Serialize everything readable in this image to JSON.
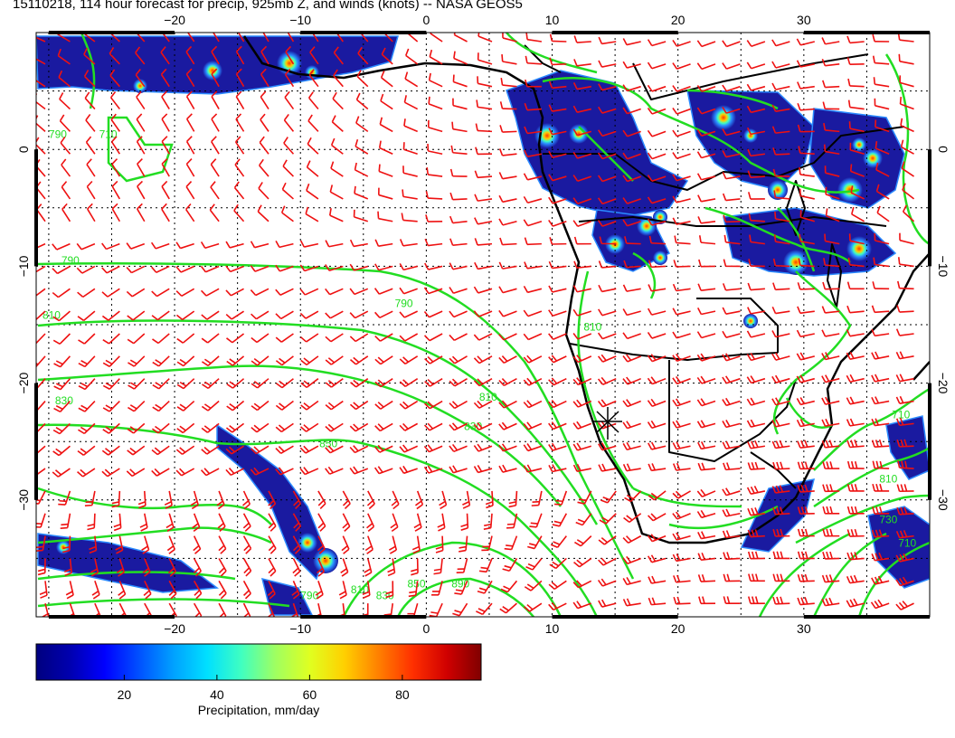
{
  "title": "15110218, 114 hour forecast for precip, 925mb Z, and winds (knots) -- NASA GEOS5",
  "map": {
    "lon_range": [
      -31,
      40
    ],
    "lat_range": [
      -40,
      10
    ],
    "lon_ticks": [
      {
        "value": -20,
        "label": "−20"
      },
      {
        "value": -10,
        "label": "−10"
      },
      {
        "value": 0,
        "label": "0"
      },
      {
        "value": 10,
        "label": "10"
      },
      {
        "value": 20,
        "label": "20"
      },
      {
        "value": 30,
        "label": "30"
      }
    ],
    "lat_ticks": [
      {
        "value": 0,
        "label": "0"
      },
      {
        "value": -10,
        "label": "−10"
      },
      {
        "value": -20,
        "label": "−20"
      },
      {
        "value": -30,
        "label": "−30"
      }
    ],
    "grid": true,
    "colors": {
      "precip_low": "#1a1aa0",
      "precip_mid": "#2a8aff",
      "precip_high": "#ff3a00",
      "contour": "#22dd22",
      "wind_barb": "#ee1111",
      "coastline": "#000000"
    },
    "contour_labels": [
      {
        "lon": -29,
        "lat": -9.8,
        "text": "790"
      },
      {
        "lon": -30.5,
        "lat": -14.5,
        "text": "810"
      },
      {
        "lon": -29.5,
        "lat": -21.8,
        "text": "830"
      },
      {
        "lon": -2.5,
        "lat": -13.5,
        "text": "790"
      },
      {
        "lon": 4.2,
        "lat": -21.5,
        "text": "810"
      },
      {
        "lon": 3,
        "lat": -24,
        "text": "830"
      },
      {
        "lon": -8.5,
        "lat": -25.5,
        "text": "850"
      },
      {
        "lon": 12.5,
        "lat": -15.5,
        "text": "810"
      },
      {
        "lon": -10,
        "lat": -38.5,
        "text": "790"
      },
      {
        "lon": -6,
        "lat": -38,
        "text": "810"
      },
      {
        "lon": -4,
        "lat": -38.5,
        "text": "830"
      },
      {
        "lon": -1.5,
        "lat": -37.5,
        "text": "850"
      },
      {
        "lon": 2,
        "lat": -37.5,
        "text": "890"
      },
      {
        "lon": 37,
        "lat": -23,
        "text": "710"
      },
      {
        "lon": 36,
        "lat": -28.5,
        "text": "810"
      },
      {
        "lon": 36,
        "lat": -32,
        "text": "730"
      },
      {
        "lon": 37.5,
        "lat": -34,
        "text": "710"
      },
      {
        "lon": -30,
        "lat": 1,
        "text": "790"
      },
      {
        "lon": -26,
        "lat": 1,
        "text": "710"
      }
    ]
  },
  "colorbar": {
    "label": "Precipitation, mm/day",
    "range": [
      1,
      97
    ],
    "ticks": [
      {
        "value": 20,
        "label": "20"
      },
      {
        "value": 40,
        "label": "40"
      },
      {
        "value": 60,
        "label": "60"
      },
      {
        "value": 80,
        "label": "80"
      }
    ],
    "colors": [
      "#00007f",
      "#0000b0",
      "#0000ff",
      "#0050ff",
      "#00a0ff",
      "#00e0ff",
      "#40ffc0",
      "#a0ff60",
      "#e0ff20",
      "#ffd000",
      "#ff8000",
      "#ff3000",
      "#d00000",
      "#800000"
    ]
  }
}
